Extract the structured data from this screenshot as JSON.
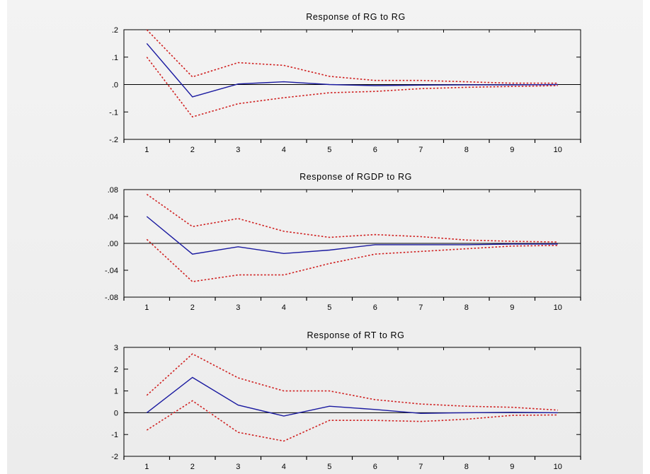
{
  "chart_data": [
    {
      "type": "line",
      "title": "Response of RG to RG",
      "x": [
        1,
        2,
        3,
        4,
        5,
        6,
        7,
        8,
        9,
        10
      ],
      "ylim": [
        -0.2,
        0.2
      ],
      "yticks": [
        -0.2,
        -0.1,
        0.0,
        0.1,
        0.2
      ],
      "ytick_labels": [
        "-.2",
        "-.1",
        ".0",
        ".1",
        ".2"
      ],
      "xtick_labels": [
        "1",
        "2",
        "3",
        "4",
        "5",
        "6",
        "7",
        "8",
        "9",
        "10"
      ],
      "zero_line": true,
      "series": [
        {
          "style": "solid",
          "color": "#1a1aa0",
          "values": [
            0.15,
            -0.045,
            0.002,
            0.01,
            0.0,
            -0.004,
            -0.002,
            -0.001,
            -0.001,
            0.0
          ]
        },
        {
          "style": "dotted",
          "color": "#d02020",
          "values": [
            0.2,
            0.028,
            0.08,
            0.07,
            0.03,
            0.015,
            0.015,
            0.01,
            0.005,
            0.005
          ]
        },
        {
          "style": "dotted",
          "color": "#d02020",
          "values": [
            0.1,
            -0.118,
            -0.07,
            -0.048,
            -0.03,
            -0.025,
            -0.015,
            -0.01,
            -0.007,
            -0.004
          ]
        }
      ]
    },
    {
      "type": "line",
      "title": "Response of RGDP to RG",
      "x": [
        1,
        2,
        3,
        4,
        5,
        6,
        7,
        8,
        9,
        10
      ],
      "ylim": [
        -0.08,
        0.08
      ],
      "yticks": [
        -0.08,
        -0.04,
        0.0,
        0.04,
        0.08
      ],
      "ytick_labels": [
        "-.08",
        "-.04",
        ".00",
        ".04",
        ".08"
      ],
      "xtick_labels": [
        "1",
        "2",
        "3",
        "4",
        "5",
        "6",
        "7",
        "8",
        "9",
        "10"
      ],
      "zero_line": true,
      "series": [
        {
          "style": "solid",
          "color": "#1a1aa0",
          "values": [
            0.04,
            -0.016,
            -0.005,
            -0.015,
            -0.01,
            -0.002,
            -0.002,
            -0.002,
            -0.001,
            -0.001
          ]
        },
        {
          "style": "dotted",
          "color": "#d02020",
          "values": [
            0.073,
            0.025,
            0.037,
            0.018,
            0.009,
            0.013,
            0.01,
            0.005,
            0.003,
            0.002
          ]
        },
        {
          "style": "dotted",
          "color": "#d02020",
          "values": [
            0.006,
            -0.057,
            -0.047,
            -0.047,
            -0.03,
            -0.016,
            -0.012,
            -0.008,
            -0.004,
            -0.003
          ]
        }
      ]
    },
    {
      "type": "line",
      "title": "Response of RT to RG",
      "x": [
        1,
        2,
        3,
        4,
        5,
        6,
        7,
        8,
        9,
        10
      ],
      "ylim": [
        -2,
        3
      ],
      "yticks": [
        -2,
        -1,
        0,
        1,
        2,
        3
      ],
      "ytick_labels": [
        "-2",
        "-1",
        "0",
        "1",
        "2",
        "3"
      ],
      "xtick_labels": [
        "1",
        "2",
        "3",
        "4",
        "5",
        "6",
        "7",
        "8",
        "9",
        "10"
      ],
      "zero_line": true,
      "series": [
        {
          "style": "solid",
          "color": "#1a1aa0",
          "values": [
            0.0,
            1.62,
            0.35,
            -0.15,
            0.3,
            0.15,
            -0.03,
            0.0,
            0.02,
            0.0
          ]
        },
        {
          "style": "dotted",
          "color": "#d02020",
          "values": [
            0.8,
            2.7,
            1.6,
            1.0,
            1.0,
            0.6,
            0.4,
            0.3,
            0.25,
            0.12
          ]
        },
        {
          "style": "dotted",
          "color": "#d02020",
          "values": [
            -0.8,
            0.55,
            -0.9,
            -1.3,
            -0.35,
            -0.35,
            -0.4,
            -0.3,
            -0.12,
            -0.1
          ]
        }
      ]
    }
  ]
}
